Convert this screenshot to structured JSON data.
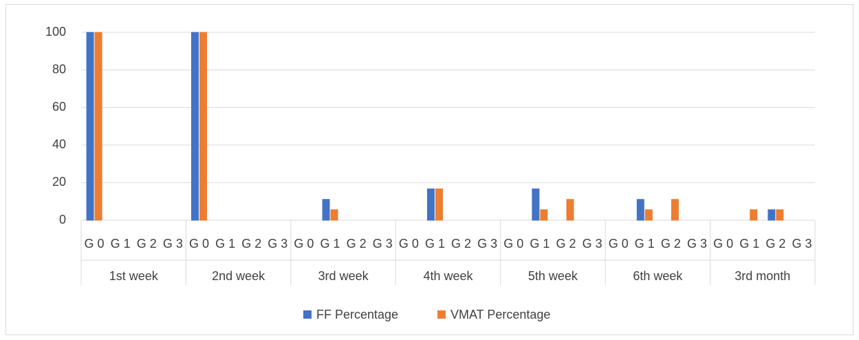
{
  "chart_data": {
    "type": "bar",
    "groups": [
      "1st week",
      "2nd week",
      "3rd week",
      "4th week",
      "5th week",
      "6th week",
      "3rd month"
    ],
    "subcategories": [
      "G 0",
      "G 1",
      "G 2",
      "G 3"
    ],
    "series": [
      {
        "name": "FF Percentage",
        "color": "#4472c4",
        "values": [
          100,
          0,
          0,
          0,
          100,
          0,
          0,
          0,
          0,
          11.1,
          0,
          0,
          0,
          16.7,
          0,
          0,
          0,
          16.7,
          0,
          0,
          0,
          11.1,
          0,
          0,
          0,
          0,
          5.6,
          null
        ]
      },
      {
        "name": "VMAT Percentage",
        "color": "#ed7d31",
        "values": [
          100,
          0,
          0,
          0,
          100,
          0,
          0,
          0,
          0,
          5.6,
          0,
          0,
          0,
          16.7,
          0,
          0,
          0,
          5.6,
          11.1,
          0,
          0,
          5.6,
          11.1,
          0,
          0,
          5.6,
          5.6,
          0
        ]
      }
    ],
    "ylim": [
      0,
      100
    ],
    "yticks": [
      0,
      20,
      40,
      60,
      80,
      100
    ],
    "grid": true,
    "legend": "bottom"
  }
}
